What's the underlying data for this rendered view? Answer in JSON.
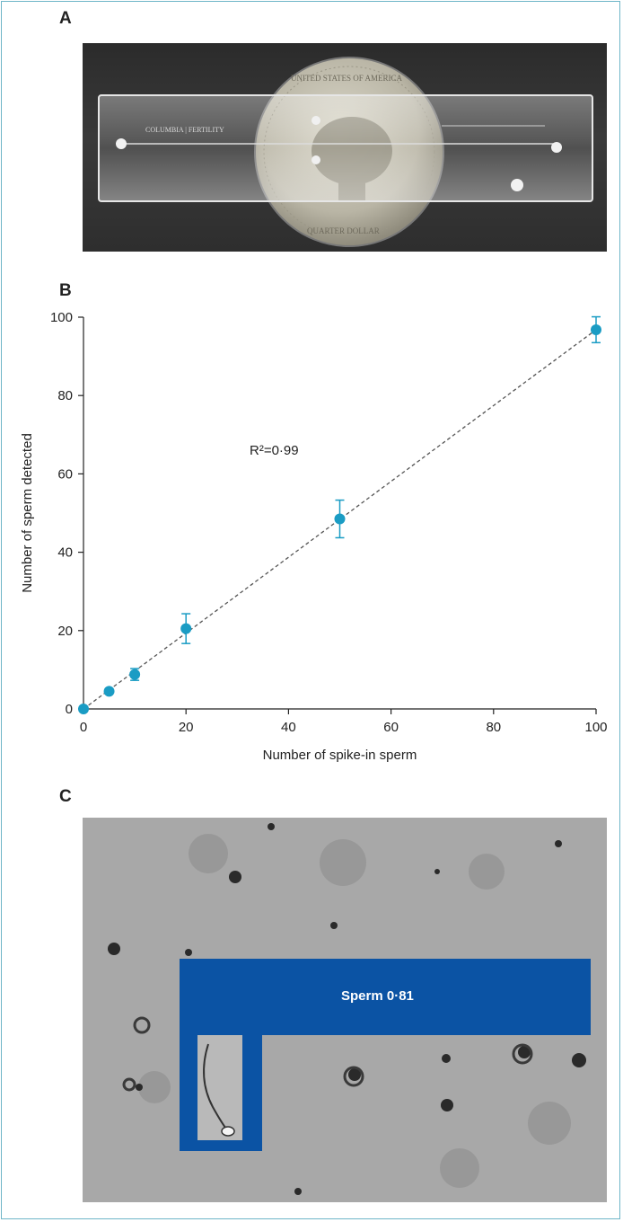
{
  "panels": {
    "a": {
      "letter": "A",
      "chip_brand": "COLUMBIA | FERTILITY",
      "coin_text_top": "UNITED STATES OF AMERICA",
      "coin_text_bottom": "QUARTER DOLLAR"
    },
    "b": {
      "letter": "B"
    },
    "c": {
      "letter": "C",
      "detection_label": "Sperm 0·81"
    }
  },
  "colors": {
    "marker": "#1a9cc4",
    "box": "#0b53a4",
    "trend": "#555555"
  },
  "chart_data": {
    "type": "scatter",
    "xlabel": "Number of spike-in sperm",
    "ylabel": "Number of sperm detected",
    "annotation": "R²=0·99",
    "xlim": [
      0,
      100
    ],
    "ylim": [
      0,
      100
    ],
    "x_ticks": [
      0,
      20,
      40,
      60,
      80,
      100
    ],
    "y_ticks": [
      0,
      20,
      40,
      60,
      80,
      100
    ],
    "points": [
      {
        "x": 0,
        "y": 0,
        "err": 0
      },
      {
        "x": 5,
        "y": 4.5,
        "err": 0
      },
      {
        "x": 10,
        "y": 8.8,
        "err": 1.5
      },
      {
        "x": 20,
        "y": 20.5,
        "err": 3.8
      },
      {
        "x": 50,
        "y": 48.5,
        "err": 4.8
      },
      {
        "x": 100,
        "y": 96.8,
        "err": 3.3
      }
    ],
    "trendline": {
      "style": "dashed",
      "from": [
        0,
        0
      ],
      "to": [
        100,
        96.8
      ]
    }
  }
}
